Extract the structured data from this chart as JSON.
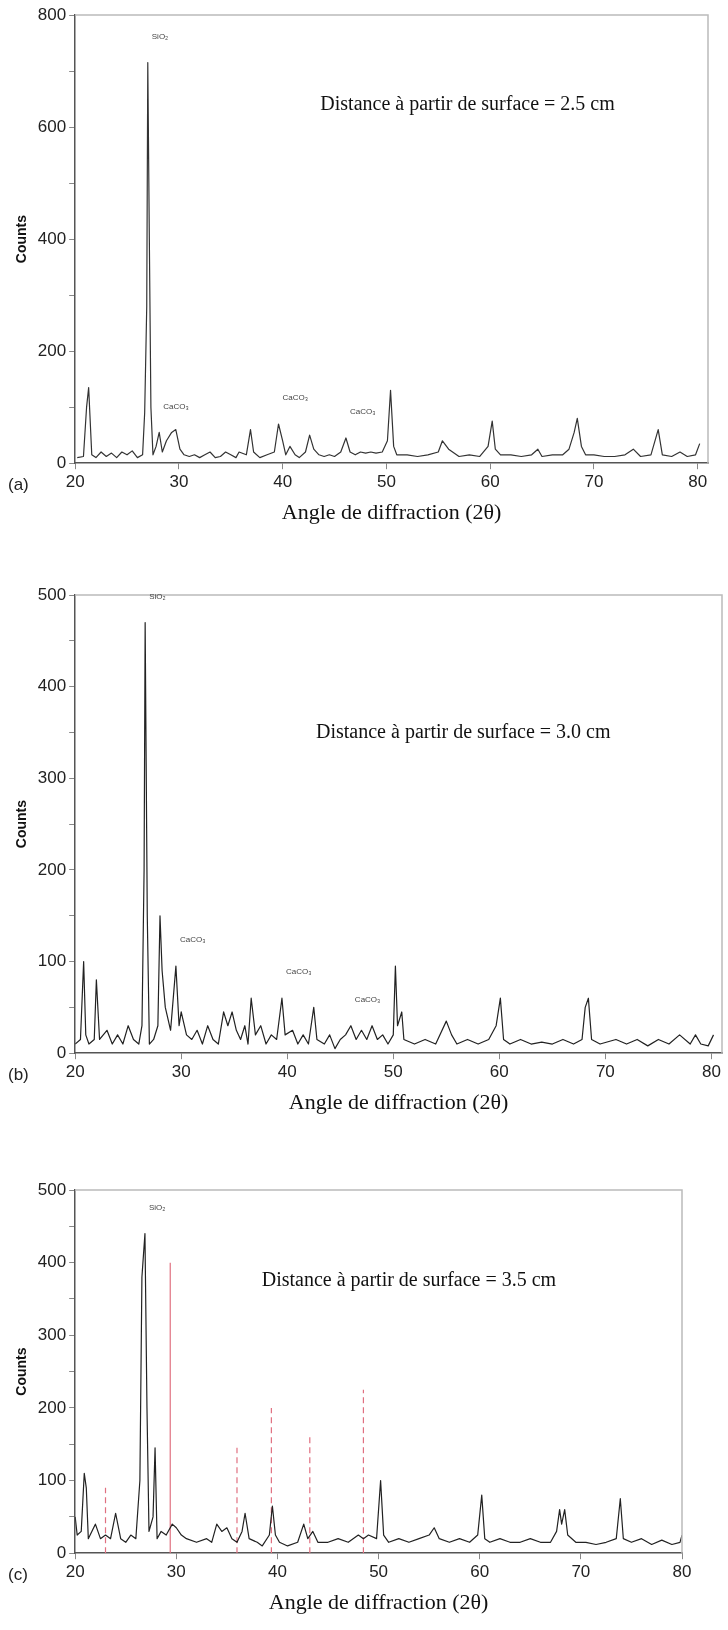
{
  "chart_data": [
    {
      "type": "line",
      "subtitle": "Distance à partir de surface = 2.5 cm",
      "xlabel": "Angle de diffraction (2θ)",
      "ylabel": "Counts",
      "annotations": [
        "(a)",
        {
          "text": "SiO₂",
          "x": 27,
          "y": 715
        },
        {
          "text": "CaCO₃",
          "x": 28.1,
          "y": 55
        },
        {
          "text": "CaCO₃",
          "x": 39.6,
          "y": 70
        },
        {
          "text": "CaCO₃",
          "x": 46.1,
          "y": 45
        }
      ],
      "xlim": [
        20,
        81
      ],
      "ylim": [
        0,
        800
      ],
      "xticks": [
        20,
        30,
        40,
        50,
        60,
        70,
        80
      ],
      "yticks": [
        0,
        {
          "value": 100,
          "label": null
        },
        200,
        {
          "value": 300,
          "label": null
        },
        400,
        {
          "value": 500,
          "label": null
        },
        600,
        {
          "value": 700,
          "label": null
        },
        800
      ],
      "grid": false,
      "marker": "none",
      "line_style": "solid",
      "series": [
        {
          "color": "#333333",
          "x": [
            20.2,
            20.8,
            21.1,
            21.3,
            21.6,
            22,
            22.5,
            23,
            23.5,
            24,
            24.5,
            25,
            25.5,
            26,
            26.5,
            26.7,
            26.9,
            27,
            27.15,
            27.3,
            27.5,
            27.8,
            28.1,
            28.4,
            28.8,
            29.3,
            29.7,
            30.1,
            30.5,
            31,
            31.5,
            32,
            32.5,
            33,
            33.5,
            34,
            34.5,
            35,
            35.5,
            35.8,
            36.5,
            36.9,
            37.2,
            37.8,
            38.5,
            39.2,
            39.6,
            40,
            40.3,
            40.7,
            41.2,
            41.6,
            42.2,
            42.6,
            43,
            43.5,
            44,
            44.5,
            45,
            45.6,
            46.1,
            46.5,
            47,
            47.5,
            48,
            48.5,
            49,
            49.6,
            50.1,
            50.4,
            50.7,
            51,
            52,
            53,
            54,
            55,
            55.4,
            56,
            57,
            58,
            59,
            59.8,
            60.2,
            60.5,
            61,
            62,
            63,
            64,
            64.6,
            65,
            66,
            67,
            67.6,
            68.1,
            68.4,
            68.8,
            69.2,
            70,
            71,
            72,
            73,
            73.8,
            74.5,
            75.5,
            76.2,
            76.6,
            77.5,
            78.3,
            79,
            79.8,
            80.2
          ],
          "values": [
            10,
            12,
            100,
            135,
            15,
            10,
            20,
            12,
            18,
            10,
            20,
            15,
            22,
            10,
            15,
            90,
            280,
            715,
            400,
            100,
            15,
            30,
            55,
            20,
            40,
            55,
            60,
            25,
            15,
            12,
            15,
            10,
            15,
            20,
            10,
            12,
            20,
            15,
            10,
            20,
            15,
            60,
            20,
            10,
            15,
            20,
            70,
            40,
            15,
            30,
            15,
            10,
            20,
            50,
            25,
            15,
            12,
            15,
            12,
            20,
            45,
            20,
            15,
            20,
            18,
            20,
            18,
            20,
            40,
            130,
            30,
            15,
            15,
            12,
            15,
            20,
            40,
            25,
            12,
            15,
            12,
            30,
            75,
            25,
            15,
            15,
            12,
            15,
            25,
            12,
            15,
            15,
            25,
            55,
            80,
            30,
            15,
            15,
            12,
            12,
            15,
            25,
            12,
            15,
            60,
            15,
            12,
            20,
            12,
            15,
            35
          ]
        }
      ]
    },
    {
      "type": "line",
      "subtitle": "Distance à partir de surface = 3.0 cm",
      "xlabel": "Angle de diffraction (2θ)",
      "ylabel": "Counts",
      "annotations": [
        "(b)",
        {
          "text": "SiO₂",
          "x": 26.6,
          "y": 470
        },
        {
          "text": "CaCO₃",
          "x": 29.5,
          "y": 95
        },
        {
          "text": "CaCO₃",
          "x": 39.5,
          "y": 60
        },
        {
          "text": "CaCO₃",
          "x": 46,
          "y": 30
        }
      ],
      "xlim": [
        20,
        81
      ],
      "ylim": [
        0,
        500
      ],
      "xticks": [
        20,
        30,
        40,
        50,
        60,
        70,
        80
      ],
      "yticks": [
        0,
        {
          "value": 50,
          "label": null
        },
        100,
        {
          "value": 150,
          "label": null
        },
        200,
        {
          "value": 250,
          "label": null
        },
        300,
        {
          "value": 350,
          "label": null
        },
        400,
        {
          "value": 450,
          "label": null
        },
        500
      ],
      "grid": false,
      "marker": "none",
      "line_style": "solid",
      "series": [
        {
          "color": "#222222",
          "x": [
            20,
            20.5,
            20.8,
            21,
            21.3,
            21.8,
            22,
            22.3,
            23,
            23.5,
            24,
            24.5,
            25,
            25.5,
            26,
            26.3,
            26.5,
            26.6,
            26.8,
            27,
            27.4,
            27.8,
            28,
            28.2,
            28.5,
            29,
            29.5,
            29.8,
            30,
            30.5,
            31,
            31.5,
            32,
            32.5,
            33,
            33.5,
            34,
            34.4,
            34.8,
            35.2,
            35.6,
            36,
            36.3,
            36.6,
            37,
            37.5,
            38,
            38.5,
            39,
            39.5,
            39.8,
            40.5,
            41,
            41.5,
            42,
            42.5,
            42.8,
            43.5,
            44,
            44.5,
            45,
            45.5,
            46,
            46.5,
            47,
            47.5,
            48,
            48.5,
            49,
            49.5,
            50,
            50.2,
            50.4,
            50.8,
            51,
            52,
            53,
            54,
            55,
            55.5,
            56,
            57,
            58,
            59,
            59.7,
            60.1,
            60.4,
            61,
            62,
            63,
            64,
            65,
            66,
            67,
            67.8,
            68.1,
            68.4,
            68.7,
            69.5,
            71,
            72,
            73,
            74,
            75,
            76,
            77,
            78,
            78.5,
            79,
            79.7,
            80.2
          ],
          "values": [
            10,
            15,
            100,
            20,
            10,
            15,
            80,
            15,
            25,
            10,
            20,
            10,
            30,
            15,
            10,
            30,
            200,
            470,
            150,
            10,
            15,
            30,
            150,
            90,
            50,
            25,
            95,
            30,
            45,
            20,
            15,
            25,
            10,
            30,
            15,
            10,
            45,
            30,
            45,
            25,
            15,
            30,
            10,
            60,
            20,
            30,
            10,
            20,
            15,
            60,
            20,
            25,
            10,
            20,
            10,
            50,
            15,
            10,
            20,
            5,
            15,
            20,
            30,
            15,
            25,
            15,
            30,
            15,
            20,
            10,
            20,
            95,
            30,
            45,
            15,
            10,
            15,
            10,
            35,
            20,
            10,
            15,
            10,
            15,
            30,
            60,
            15,
            10,
            15,
            10,
            12,
            10,
            15,
            10,
            15,
            50,
            60,
            15,
            10,
            15,
            10,
            15,
            8,
            15,
            10,
            20,
            10,
            20,
            10,
            8,
            20
          ]
        }
      ]
    },
    {
      "type": "line",
      "subtitle": "Distance à partir de surface = 3.5 cm",
      "xlabel": "Angle de diffraction (2θ)",
      "ylabel": "Counts",
      "annotations": [
        "(c)",
        {
          "text": "SiO₂",
          "x": 26.9,
          "y": 440
        }
      ],
      "xlim": [
        20,
        80
      ],
      "ylim": [
        0,
        500
      ],
      "xticks": [
        20,
        30,
        40,
        50,
        60,
        70,
        80
      ],
      "yticks": [
        0,
        {
          "value": 50,
          "label": null
        },
        100,
        {
          "value": 150,
          "label": null
        },
        200,
        {
          "value": 250,
          "label": null
        },
        300,
        {
          "value": 350,
          "label": null
        },
        400,
        {
          "value": 450,
          "label": null
        },
        500
      ],
      "grid": false,
      "marker": "none",
      "line_style": "solid",
      "series": [
        {
          "color": "#222222",
          "x": [
            20,
            20.2,
            20.6,
            20.9,
            21.1,
            21.3,
            22,
            22.5,
            23,
            23.5,
            24,
            24.5,
            25,
            25.5,
            26,
            26.4,
            26.6,
            26.9,
            27.1,
            27.3,
            27.7,
            27.9,
            28.1,
            28.5,
            29,
            29.6,
            30,
            30.5,
            31,
            32,
            33,
            33.5,
            34,
            34.5,
            35,
            35.5,
            36,
            36.5,
            36.8,
            37.2,
            38,
            38.5,
            39.2,
            39.5,
            39.8,
            40.2,
            41,
            42,
            42.6,
            43,
            43.5,
            44,
            45,
            46,
            47,
            48,
            48.5,
            49,
            49.8,
            50.2,
            50.5,
            51,
            52,
            53,
            54,
            55,
            55.5,
            56,
            57,
            58,
            59,
            59.8,
            60.2,
            60.5,
            61,
            62,
            63,
            64,
            65,
            66,
            67,
            67.6,
            67.9,
            68.1,
            68.4,
            68.7,
            69.5,
            70.5,
            71.5,
            72.5,
            73.5,
            73.9,
            74.2,
            75,
            76,
            77,
            78,
            79,
            79.8,
            80
          ],
          "values": [
            50,
            25,
            30,
            110,
            90,
            20,
            40,
            20,
            25,
            20,
            55,
            20,
            15,
            25,
            20,
            100,
            380,
            440,
            200,
            30,
            50,
            145,
            20,
            30,
            25,
            40,
            35,
            25,
            20,
            15,
            20,
            15,
            40,
            30,
            35,
            20,
            15,
            30,
            55,
            20,
            15,
            10,
            25,
            65,
            25,
            15,
            10,
            15,
            40,
            20,
            30,
            15,
            15,
            20,
            15,
            25,
            20,
            25,
            20,
            100,
            25,
            15,
            20,
            15,
            20,
            25,
            35,
            20,
            15,
            20,
            15,
            25,
            80,
            20,
            15,
            20,
            15,
            15,
            20,
            15,
            15,
            30,
            60,
            40,
            60,
            25,
            15,
            15,
            12,
            15,
            20,
            75,
            20,
            15,
            20,
            12,
            18,
            12,
            15,
            25
          ]
        },
        {
          "type": "line",
          "color": "#e07080",
          "line_style": "solid",
          "x": [
            29.4,
            29.4
          ],
          "values": [
            0,
            400
          ]
        },
        {
          "type": "line",
          "color": "#e07080",
          "line_style": "dashed",
          "x": [
            23,
            23
          ],
          "values": [
            0,
            90
          ]
        },
        {
          "type": "line",
          "color": "#e07080",
          "line_style": "dashed",
          "x": [
            36,
            36
          ],
          "values": [
            0,
            145
          ]
        },
        {
          "type": "line",
          "color": "#e07080",
          "line_style": "dashed",
          "x": [
            39.4,
            39.4
          ],
          "values": [
            0,
            200
          ]
        },
        {
          "type": "line",
          "color": "#e07080",
          "line_style": "dashed",
          "x": [
            43.2,
            43.2
          ],
          "values": [
            0,
            160
          ]
        },
        {
          "type": "line",
          "color": "#e07080",
          "line_style": "dashed",
          "x": [
            48.5,
            48.5
          ],
          "values": [
            0,
            225
          ]
        }
      ]
    }
  ]
}
